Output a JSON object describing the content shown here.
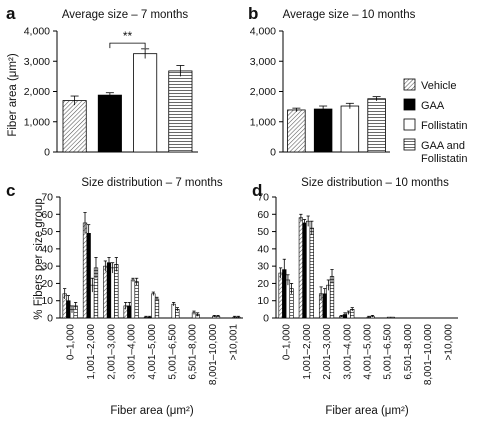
{
  "panels": {
    "a": {
      "letter": "a",
      "title": "Average size – 7 months",
      "ylabel": "Fiber area (μm²)",
      "significance": "**"
    },
    "b": {
      "letter": "b",
      "title": "Average size – 10 months"
    },
    "c": {
      "letter": "c",
      "title": "Size distribution – 7 months",
      "ylabel": "% Fibers per size group",
      "xlabel": "Fiber area (μm²)"
    },
    "d": {
      "letter": "d",
      "title": "Size distribution – 10 months",
      "xlabel": "Fiber area (μm²)"
    }
  },
  "legend": [
    {
      "label": "Vehicle",
      "pattern": "diagonal-hatch"
    },
    {
      "label": "GAA",
      "pattern": "solid-black"
    },
    {
      "label": "Follistatin",
      "pattern": "white"
    },
    {
      "label": "GAA and Follistatin",
      "pattern": "horizontal-lines"
    }
  ],
  "chart_data": [
    {
      "panel": "a",
      "type": "bar",
      "title": "Average size – 7 months",
      "ylabel": "Fiber area (μm²)",
      "ylim": [
        0,
        4000
      ],
      "yticks": [
        0,
        1000,
        2000,
        3000,
        4000
      ],
      "ytick_labels": [
        "0",
        "1,000",
        "2,000",
        "3,000",
        "4,000"
      ],
      "categories": [
        "Vehicle",
        "GAA",
        "Follistatin",
        "GAA and Follistatin"
      ],
      "values": [
        1700,
        1880,
        3250,
        2680
      ],
      "errors": [
        150,
        80,
        160,
        180
      ],
      "annotation": {
        "text": "**",
        "between": [
          "GAA",
          "Follistatin"
        ]
      }
    },
    {
      "panel": "b",
      "type": "bar",
      "title": "Average size – 10 months",
      "ylim": [
        0,
        4000
      ],
      "yticks": [
        0,
        1000,
        2000,
        3000,
        4000
      ],
      "ytick_labels": [
        "0",
        "1,000",
        "2,000",
        "3,000",
        "4,000"
      ],
      "categories": [
        "Vehicle",
        "GAA",
        "Follistatin",
        "GAA and Follistatin"
      ],
      "values": [
        1390,
        1420,
        1520,
        1760
      ],
      "errors": [
        60,
        100,
        90,
        70
      ]
    },
    {
      "panel": "c",
      "type": "bar",
      "title": "Size distribution – 7 months",
      "ylabel": "% Fibers per size group",
      "xlabel": "Fiber area (μm²)",
      "ylim": [
        0,
        70
      ],
      "yticks": [
        0,
        10,
        20,
        30,
        40,
        50,
        60,
        70
      ],
      "categories": [
        "0–1,000",
        "1,001–2,000",
        "2,001–3,000",
        "3,001–4,000",
        "4,001–5,000",
        "5,001–6,500",
        "6,501–8,000",
        "8,001–10,000",
        ">10,001"
      ],
      "series": [
        {
          "name": "Vehicle",
          "values": [
            14,
            55,
            30,
            7,
            0.5,
            0,
            0,
            0,
            0
          ],
          "errors": [
            3,
            6,
            3,
            2,
            0.5,
            0,
            0,
            0,
            0
          ]
        },
        {
          "name": "GAA",
          "values": [
            10,
            49,
            32,
            7,
            0.5,
            0,
            0,
            0,
            0
          ],
          "errors": [
            3,
            5,
            3,
            2,
            0.5,
            0,
            0,
            0,
            0
          ]
        },
        {
          "name": "Follistatin",
          "values": [
            5,
            19,
            29,
            22,
            14,
            8,
            3,
            1,
            0.5
          ],
          "errors": [
            2,
            4,
            3,
            1,
            1,
            1,
            1,
            0.5,
            0.5
          ]
        },
        {
          "name": "GAA and Follistatin",
          "values": [
            7,
            29,
            31,
            21,
            11,
            5,
            2,
            1,
            0.5
          ],
          "errors": [
            2,
            6,
            4,
            2,
            1,
            1,
            1,
            0.5,
            0.5
          ]
        }
      ]
    },
    {
      "panel": "d",
      "type": "bar",
      "title": "Size distribution – 10 months",
      "xlabel": "Fiber area (μm²)",
      "ylim": [
        0,
        70
      ],
      "yticks": [
        0,
        10,
        20,
        30,
        40,
        50,
        60,
        70
      ],
      "categories": [
        "0–1,000",
        "1,001–2,000",
        "2,001–3,000",
        "3,001–4,000",
        "4,001–5,000",
        "5,001–6,500",
        "6,501–8,000",
        "8,001–10,000",
        ">10,000"
      ],
      "series": [
        {
          "name": "Vehicle",
          "values": [
            26,
            58,
            14,
            1,
            0,
            0,
            0,
            0,
            0
          ],
          "errors": [
            3,
            2,
            4,
            0.5,
            0,
            0,
            0,
            0,
            0
          ]
        },
        {
          "name": "GAA",
          "values": [
            28,
            55,
            14,
            2,
            0,
            0,
            0,
            0,
            0
          ],
          "errors": [
            6,
            2,
            3,
            1,
            0,
            0,
            0,
            0,
            0
          ]
        },
        {
          "name": "Follistatin",
          "values": [
            22,
            56,
            19,
            3,
            0.5,
            0.5,
            0,
            0,
            0
          ],
          "errors": [
            3,
            3,
            3,
            1,
            0.5,
            0,
            0,
            0,
            0
          ]
        },
        {
          "name": "GAA and Follistatin",
          "values": [
            17,
            52,
            24,
            5,
            1,
            0.5,
            0,
            0,
            0
          ],
          "errors": [
            3,
            4,
            4,
            1,
            0.5,
            0,
            0,
            0,
            0
          ]
        }
      ]
    }
  ]
}
